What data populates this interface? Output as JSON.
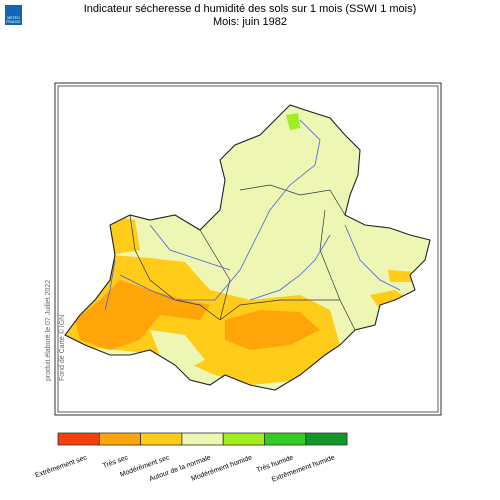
{
  "header": {
    "title": "Indicateur sécheresse d humidité des sols sur 1 mois (SSWI 1 mois)",
    "subtitle": "Mois: juin 1982"
  },
  "logo": {
    "line1": "MÉTÉO",
    "line2": "FRANCE"
  },
  "side_note": "produit élaboré le 07 Juillet 2022",
  "side_credit": "Fond de Carte © IGN",
  "legend": [
    {
      "label": "Extrêmement sec",
      "color": "#f5400c"
    },
    {
      "label": "Très sec",
      "color": "#ffa50a"
    },
    {
      "label": "Modérément sec",
      "color": "#ffcc1a"
    },
    {
      "label": "Autour de la normale",
      "color": "#eef6b4"
    },
    {
      "label": "Modérément humide",
      "color": "#a0ee20"
    },
    {
      "label": "Très humide",
      "color": "#33cc22"
    },
    {
      "label": "Extrêmement humide",
      "color": "#11962a"
    }
  ]
}
